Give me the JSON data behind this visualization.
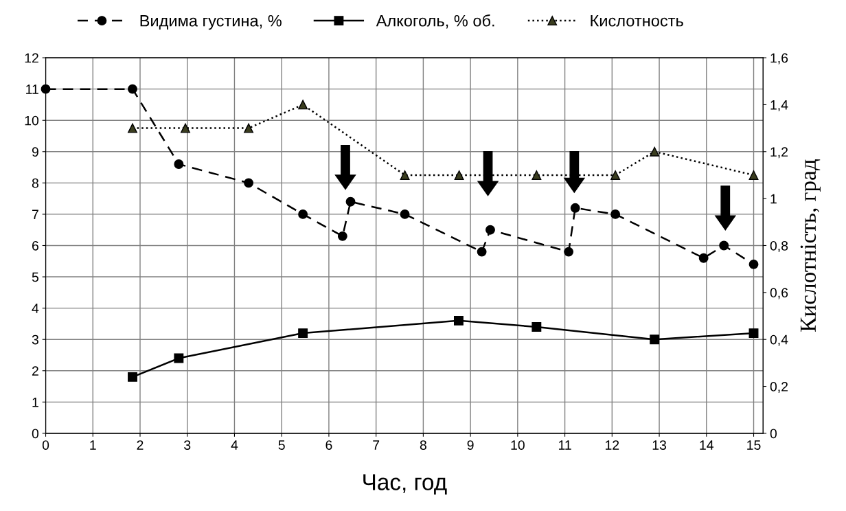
{
  "chart_data": {
    "type": "line",
    "xlabel": "Час, год",
    "y2label": "Кислотність, град",
    "xlim": [
      0,
      15.2
    ],
    "xticks": [
      0,
      1,
      2,
      3,
      4,
      5,
      6,
      7,
      8,
      9,
      10,
      11,
      12,
      13,
      14,
      15
    ],
    "ylim": [
      0,
      12
    ],
    "yticks": [
      0,
      1,
      2,
      3,
      4,
      5,
      6,
      7,
      8,
      9,
      10,
      11,
      12
    ],
    "y2lim": [
      0,
      1.6
    ],
    "y2ticks": [
      {
        "value": 0,
        "label": "0"
      },
      {
        "value": 0.2,
        "label": "0,2"
      },
      {
        "value": 0.4,
        "label": "0,4"
      },
      {
        "value": 0.6,
        "label": "0,6"
      },
      {
        "value": 0.8,
        "label": "0,8"
      },
      {
        "value": 1,
        "label": "1"
      },
      {
        "value": 1.2,
        "label": "1,2"
      },
      {
        "value": 1.4,
        "label": "1,4"
      },
      {
        "value": 1.6,
        "label": "1,6"
      }
    ],
    "grid": true,
    "legend": "top",
    "series": [
      {
        "name": "Видима густина, %",
        "color": "#000000",
        "marker": "circle",
        "line_style": "dashed",
        "x": [
          0,
          1.84,
          2.82,
          4.3,
          5.45,
          6.29,
          6.46,
          7.61,
          9.24,
          9.42,
          11.08,
          11.22,
          12.07,
          13.94,
          14.37,
          15
        ],
        "values": [
          11,
          11,
          8.6,
          8,
          7,
          6.3,
          7.4,
          7,
          5.8,
          6.5,
          5.8,
          7.2,
          7,
          5.6,
          6,
          5.4
        ]
      },
      {
        "name": "Алкоголь, % об.",
        "color": "#000000",
        "marker": "square",
        "line_style": "solid",
        "x": [
          1.84,
          2.82,
          5.45,
          8.75,
          10.4,
          12.9,
          15
        ],
        "values": [
          1.8,
          2.4,
          3.2,
          3.6,
          3.4,
          3,
          3.2
        ]
      },
      {
        "name": "Кислотность",
        "color": "#3a3d1f",
        "marker": "triangle",
        "line_style": "dotted",
        "axis": "y2",
        "x": [
          1.84,
          2.96,
          4.3,
          5.45,
          7.61,
          8.76,
          10.4,
          12.07,
          12.9,
          15
        ],
        "values": [
          1.3,
          1.3,
          1.3,
          1.4,
          1.1,
          1.1,
          1.1,
          1.1,
          1.2,
          1.1
        ]
      }
    ]
  }
}
